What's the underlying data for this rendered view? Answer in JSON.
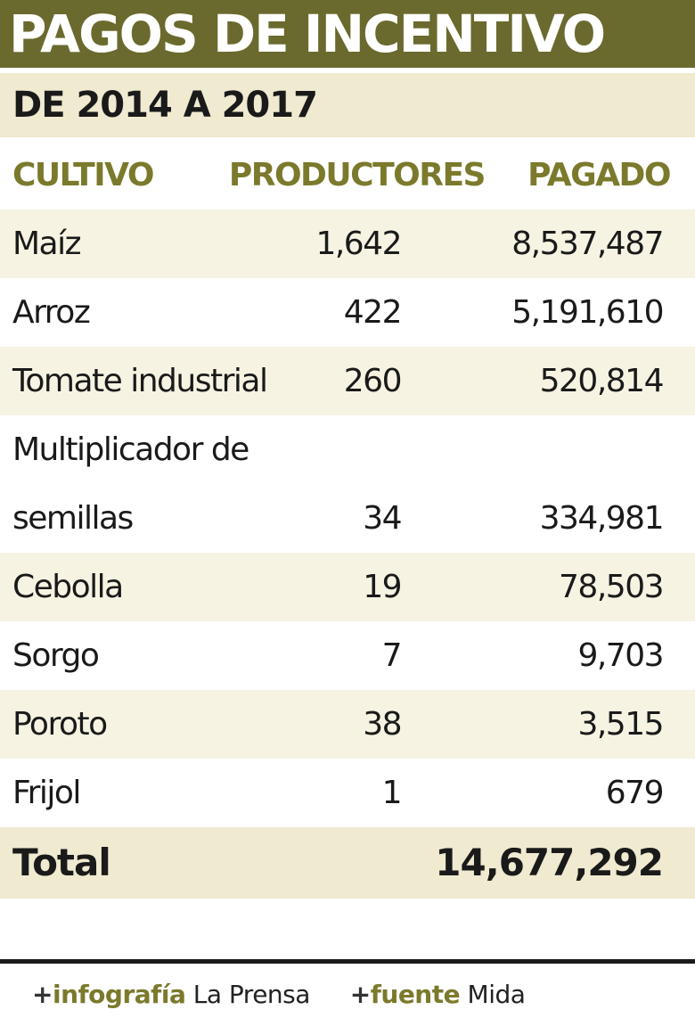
{
  "header": {
    "title": "PAGOS DE INCENTIVO",
    "subtitle": "DE 2014 A 2017"
  },
  "table": {
    "columns": [
      "CULTIVO",
      "PRODUCTORES",
      "PAGADO"
    ],
    "rows": [
      {
        "cultivo": "Maíz",
        "productores": "1,642",
        "pagado": "8,537,487"
      },
      {
        "cultivo": "Arroz",
        "productores": "422",
        "pagado": "5,191,610"
      },
      {
        "cultivo": "Tomate industrial",
        "productores": "260",
        "pagado": "520,814"
      },
      {
        "cultivo": "Multiplicador de semillas",
        "productores": "34",
        "pagado": "334,981"
      },
      {
        "cultivo": "Cebolla",
        "productores": "19",
        "pagado": "78,503"
      },
      {
        "cultivo": "Sorgo",
        "productores": "7",
        "pagado": "9,703"
      },
      {
        "cultivo": "Poroto",
        "productores": "38",
        "pagado": "3,515"
      },
      {
        "cultivo": "Frijol",
        "productores": "1",
        "pagado": "679"
      }
    ],
    "total": {
      "label": "Total",
      "pagado": "14,677,292"
    }
  },
  "footer": {
    "credit_keyword": "infografía",
    "credit_value": "La Prensa",
    "source_keyword": "fuente",
    "source_value": "Mida"
  },
  "colors": {
    "title_bar": "#6b6a2e",
    "header_text": "#7b7a2c",
    "stripe": "#f6f3e2",
    "subtitle_bg": "#efead0"
  }
}
